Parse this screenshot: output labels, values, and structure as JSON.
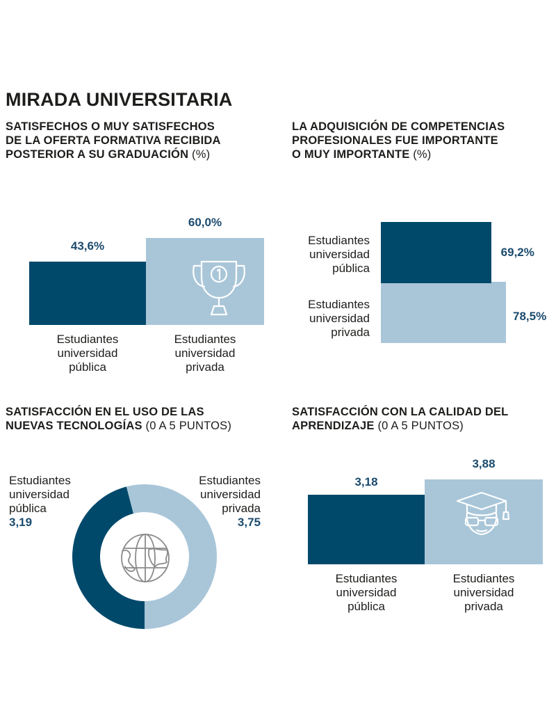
{
  "main_title": "MIRADA UNIVERSITARIA",
  "colors": {
    "publica": "#00496b",
    "privada": "#a9c6d9",
    "value_text": "#1b4b6e",
    "icon_stroke": "#ffffff",
    "globe_stroke": "#8a8a8a"
  },
  "chart_data": [
    {
      "type": "bar",
      "title_lines": [
        "SATISFECHOS O MUY SATISFECHOS",
        "DE LA OFERTA FORMATIVA RECIBIDA",
        "POSTERIOR A SU GRADUACIÓN"
      ],
      "unit": "(%)",
      "categories": [
        {
          "lines": [
            "Estudiantes",
            "universidad",
            "pública"
          ],
          "value": 43.6,
          "label": "43,6%"
        },
        {
          "lines": [
            "Estudiantes",
            "universidad",
            "privada"
          ],
          "value": 60.0,
          "label": "60,0%"
        }
      ],
      "icon": "trophy-icon"
    },
    {
      "type": "bar",
      "orientation": "horizontal",
      "title_lines": [
        "LA ADQUISICIÓN DE COMPETENCIAS",
        "PROFESIONALES FUE IMPORTANTE",
        "O MUY IMPORTANTE"
      ],
      "unit": "(%)",
      "categories": [
        {
          "lines": [
            "Estudiantes",
            "universidad",
            "pública"
          ],
          "value": 69.2,
          "label": "69,2%"
        },
        {
          "lines": [
            "Estudiantes",
            "universidad",
            "privada"
          ],
          "value": 78.5,
          "label": "78,5%"
        }
      ],
      "icon": "certificate-icon"
    },
    {
      "type": "pie",
      "title_lines": [
        "SATISFACCIÓN EN EL USO DE LAS",
        "NUEVAS TECNOLOGÍAS"
      ],
      "unit": "(0 A 5 PUNTOS)",
      "categories": [
        {
          "lines": [
            "Estudiantes",
            "universidad",
            "pública"
          ],
          "value": 3.19,
          "label": "3,19"
        },
        {
          "lines": [
            "Estudiantes",
            "universidad",
            "privada"
          ],
          "value": 3.75,
          "label": "3,75"
        }
      ],
      "icon": "globe-icon"
    },
    {
      "type": "bar",
      "title_lines": [
        "SATISFACCIÓN CON LA CALIDAD DEL",
        "APRENDIZAJE"
      ],
      "unit": "(0 A 5 PUNTOS)",
      "categories": [
        {
          "lines": [
            "Estudiantes",
            "universidad",
            "pública"
          ],
          "value": 3.18,
          "label": "3,18"
        },
        {
          "lines": [
            "Estudiantes",
            "universidad",
            "privada"
          ],
          "value": 3.88,
          "label": "3,88"
        }
      ],
      "icon": "graduate-icon"
    }
  ]
}
